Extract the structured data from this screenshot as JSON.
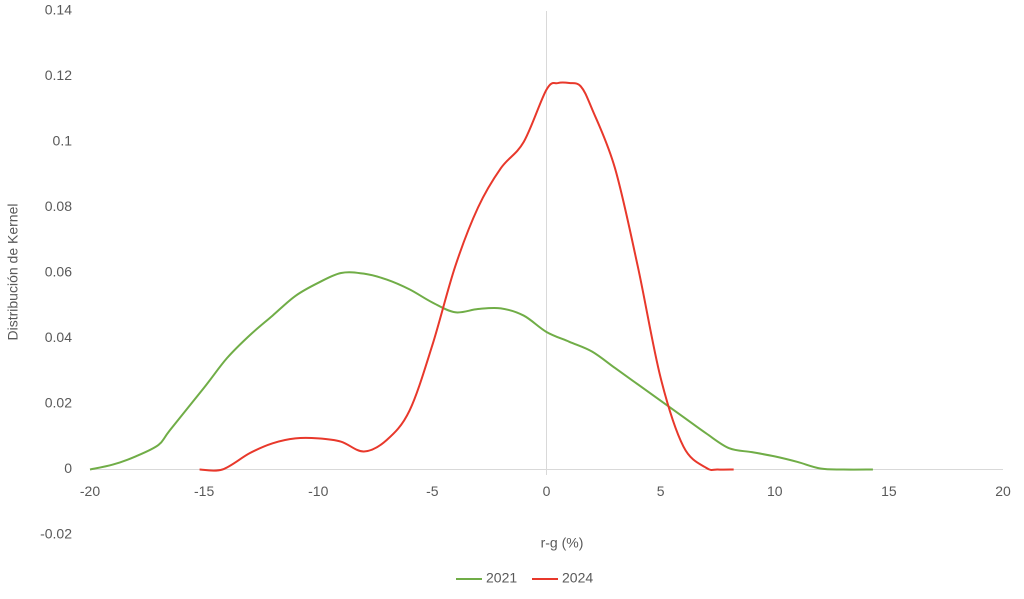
{
  "chart_data": {
    "type": "line",
    "x_label": "r-g (%)",
    "y_label": "Distribución de Kernel",
    "xlim": [
      -20,
      20
    ],
    "xticks": [
      -20,
      -15,
      -10,
      -5,
      0,
      5,
      10,
      15,
      20
    ],
    "ylim": [
      -0.02,
      0.14
    ],
    "yticks": [
      -0.02,
      0,
      0.02,
      0.04,
      0.06,
      0.08,
      0.1,
      0.12,
      0.14
    ],
    "grid": false,
    "legend": "bottom",
    "series": [
      {
        "name": "2021",
        "color": "#70ad47",
        "x": [
          -20,
          -19,
          -18,
          -17,
          -16.5,
          -15,
          -14,
          -13,
          -12,
          -11,
          -10,
          -9,
          -8,
          -7,
          -6,
          -5,
          -4,
          -3,
          -2,
          -1,
          0,
          1,
          2,
          3,
          4,
          5,
          6,
          7,
          8,
          9,
          10,
          11,
          12,
          13,
          14.3
        ],
        "values": [
          0,
          0.0015,
          0.004,
          0.0075,
          0.012,
          0.025,
          0.034,
          0.041,
          0.047,
          0.053,
          0.057,
          0.06,
          0.0598,
          0.058,
          0.055,
          0.051,
          0.048,
          0.049,
          0.0492,
          0.047,
          0.042,
          0.039,
          0.036,
          0.031,
          0.026,
          0.021,
          0.016,
          0.011,
          0.0065,
          0.0053,
          0.004,
          0.0023,
          0.0003,
          0,
          0
        ]
      },
      {
        "name": "2024",
        "color": "#e8382b",
        "x": [
          -15.2,
          -14.2,
          -13,
          -12,
          -11,
          -10,
          -9,
          -8,
          -7,
          -6,
          -5,
          -4,
          -3,
          -2,
          -1,
          0,
          0.5,
          1,
          1.5,
          2,
          3,
          4,
          5,
          6,
          7,
          7.5,
          8.2
        ],
        "values": [
          0,
          0,
          0.005,
          0.008,
          0.0095,
          0.0095,
          0.0085,
          0.0055,
          0.009,
          0.018,
          0.038,
          0.062,
          0.08,
          0.092,
          0.1,
          0.116,
          0.118,
          0.118,
          0.117,
          0.11,
          0.092,
          0.062,
          0.028,
          0.007,
          0.0005,
          0,
          0
        ]
      }
    ]
  }
}
